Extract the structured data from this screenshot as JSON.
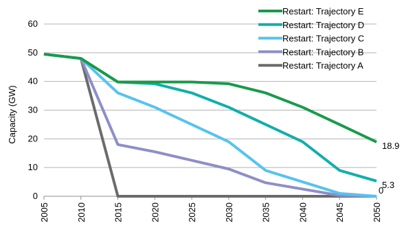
{
  "chart_data": {
    "type": "line",
    "ylabel": "Capacity (GW)",
    "x": [
      "2005",
      "2010",
      "2015",
      "2020",
      "2025",
      "2030",
      "2035",
      "2040",
      "2045",
      "2050"
    ],
    "yticks": [
      "0",
      "10",
      "20",
      "30",
      "40",
      "50",
      "60"
    ],
    "ylim": [
      0,
      60
    ],
    "grid": true,
    "legend_position": "top-right",
    "series": [
      {
        "name": "Restart: Trajectory E",
        "color": "#1a9a4a",
        "values": [
          49.5,
          48,
          39.8,
          39.8,
          39.8,
          39.2,
          36,
          31,
          25,
          18.9
        ]
      },
      {
        "name": "Restart: Trajectory D",
        "color": "#12aeac",
        "values": [
          49.5,
          48,
          39.8,
          39.2,
          36,
          31,
          25,
          19,
          9,
          5.3
        ]
      },
      {
        "name": "Restart: Trajectory C",
        "color": "#56c3ee",
        "values": [
          49.5,
          48,
          36,
          31,
          25,
          19,
          9,
          5,
          1,
          0
        ]
      },
      {
        "name": "Restart: Trajectory B",
        "color": "#8e8ec8",
        "values": [
          49.5,
          48,
          18,
          15.5,
          12.5,
          9.5,
          4.7,
          2.5,
          0.3,
          0
        ]
      },
      {
        "name": "Restart: Trajectory A",
        "color": "#6b6b6b",
        "values": [
          49.5,
          48,
          0,
          0,
          0,
          0,
          0,
          0,
          0,
          0
        ]
      }
    ],
    "end_labels": [
      {
        "series": 0,
        "text": "18.9"
      },
      {
        "series": 1,
        "text": "5.3"
      },
      {
        "series": 2,
        "text": "0"
      }
    ]
  }
}
